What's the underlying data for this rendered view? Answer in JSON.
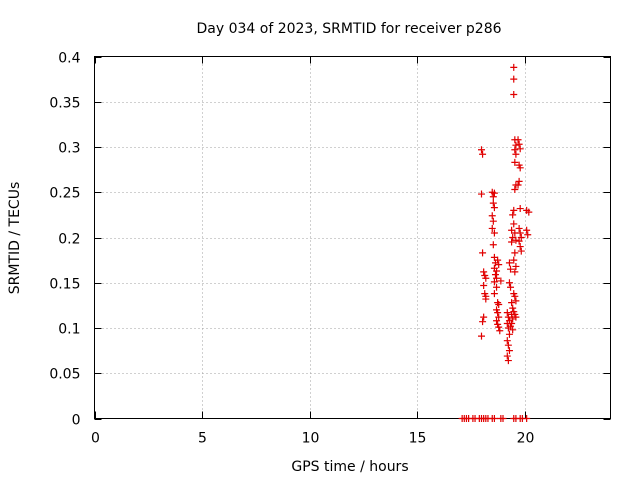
{
  "chart_data": {
    "type": "scatter",
    "title": "Day 034 of 2023, SRMTID for receiver p286",
    "xlabel": "GPS time / hours",
    "ylabel": "SRMTID / TECUs",
    "xlim": [
      0,
      24
    ],
    "ylim": [
      0,
      0.4
    ],
    "xticks": [
      0,
      5,
      10,
      15,
      20
    ],
    "xtick_labels": [
      "0",
      "5",
      "10",
      "15",
      "20"
    ],
    "yticks": [
      0,
      0.05,
      0.1,
      0.15,
      0.2,
      0.25,
      0.3,
      0.35,
      0.4
    ],
    "ytick_labels": [
      "0",
      "0.05",
      "0.1",
      "0.15",
      "0.2",
      "0.25",
      "0.3",
      "0.35",
      "0.4"
    ],
    "grid": true,
    "marker": "+",
    "series_color": "#e00000",
    "series": [
      {
        "name": "SRMTID",
        "points": [
          [
            17.1,
            0
          ],
          [
            17.2,
            0
          ],
          [
            17.3,
            0
          ],
          [
            17.4,
            0
          ],
          [
            17.6,
            0
          ],
          [
            17.7,
            0
          ],
          [
            17.9,
            0
          ],
          [
            18.0,
            0
          ],
          [
            18.1,
            0
          ],
          [
            18.2,
            0
          ],
          [
            18.3,
            0
          ],
          [
            18.5,
            0
          ],
          [
            18.6,
            0
          ],
          [
            18.9,
            0
          ],
          [
            19.0,
            0
          ],
          [
            19.5,
            0
          ],
          [
            19.6,
            0
          ],
          [
            19.8,
            0
          ],
          [
            19.9,
            0
          ],
          [
            20.1,
            0
          ],
          [
            18.0,
            0.297
          ],
          [
            18.05,
            0.292
          ],
          [
            18.0,
            0.248
          ],
          [
            18.05,
            0.183
          ],
          [
            18.1,
            0.162
          ],
          [
            18.15,
            0.158
          ],
          [
            18.2,
            0.155
          ],
          [
            18.1,
            0.147
          ],
          [
            18.15,
            0.138
          ],
          [
            18.2,
            0.132
          ],
          [
            18.1,
            0.112
          ],
          [
            18.05,
            0.107
          ],
          [
            18.0,
            0.091
          ],
          [
            18.2,
            0.135
          ],
          [
            18.5,
            0.25
          ],
          [
            18.55,
            0.245
          ],
          [
            18.6,
            0.249
          ],
          [
            18.55,
            0.238
          ],
          [
            18.6,
            0.233
          ],
          [
            18.5,
            0.224
          ],
          [
            18.55,
            0.218
          ],
          [
            18.5,
            0.21
          ],
          [
            18.6,
            0.205
          ],
          [
            18.55,
            0.192
          ],
          [
            18.6,
            0.178
          ],
          [
            18.65,
            0.172
          ],
          [
            18.6,
            0.166
          ],
          [
            18.7,
            0.163
          ],
          [
            18.65,
            0.159
          ],
          [
            18.7,
            0.155
          ],
          [
            18.6,
            0.151
          ],
          [
            18.75,
            0.175
          ],
          [
            18.8,
            0.17
          ],
          [
            18.7,
            0.145
          ],
          [
            18.6,
            0.138
          ],
          [
            18.75,
            0.128
          ],
          [
            18.8,
            0.126
          ],
          [
            18.7,
            0.12
          ],
          [
            18.75,
            0.117
          ],
          [
            18.8,
            0.112
          ],
          [
            18.7,
            0.108
          ],
          [
            18.75,
            0.104
          ],
          [
            18.8,
            0.101
          ],
          [
            18.85,
            0.097
          ],
          [
            18.9,
            0.152
          ],
          [
            19.2,
            0.117
          ],
          [
            19.25,
            0.112
          ],
          [
            19.3,
            0.108
          ],
          [
            19.2,
            0.105
          ],
          [
            19.25,
            0.1
          ],
          [
            19.3,
            0.093
          ],
          [
            19.2,
            0.086
          ],
          [
            19.25,
            0.081
          ],
          [
            19.3,
            0.075
          ],
          [
            19.2,
            0.069
          ],
          [
            19.25,
            0.064
          ],
          [
            19.3,
            0.172
          ],
          [
            19.35,
            0.165
          ],
          [
            19.3,
            0.15
          ],
          [
            19.35,
            0.145
          ],
          [
            19.4,
            0.128
          ],
          [
            19.45,
            0.122
          ],
          [
            19.4,
            0.115
          ],
          [
            19.45,
            0.11
          ],
          [
            19.4,
            0.105
          ],
          [
            19.35,
            0.102
          ],
          [
            19.45,
            0.098
          ],
          [
            19.4,
            0.208
          ],
          [
            19.45,
            0.2
          ],
          [
            19.4,
            0.195
          ],
          [
            19.5,
            0.23
          ],
          [
            19.45,
            0.225
          ],
          [
            19.5,
            0.388
          ],
          [
            19.5,
            0.375
          ],
          [
            19.5,
            0.358
          ],
          [
            19.55,
            0.308
          ],
          [
            19.6,
            0.302
          ],
          [
            19.55,
            0.297
          ],
          [
            19.6,
            0.292
          ],
          [
            19.55,
            0.283
          ],
          [
            19.6,
            0.258
          ],
          [
            19.55,
            0.253
          ],
          [
            19.5,
            0.215
          ],
          [
            19.55,
            0.205
          ],
          [
            19.6,
            0.197
          ],
          [
            19.55,
            0.183
          ],
          [
            19.5,
            0.175
          ],
          [
            19.6,
            0.168
          ],
          [
            19.55,
            0.162
          ],
          [
            19.5,
            0.138
          ],
          [
            19.55,
            0.135
          ],
          [
            19.6,
            0.13
          ],
          [
            19.5,
            0.118
          ],
          [
            19.55,
            0.115
          ],
          [
            19.6,
            0.112
          ],
          [
            19.7,
            0.308
          ],
          [
            19.75,
            0.303
          ],
          [
            19.8,
            0.298
          ],
          [
            19.75,
            0.28
          ],
          [
            19.8,
            0.277
          ],
          [
            19.75,
            0.262
          ],
          [
            19.7,
            0.258
          ],
          [
            19.8,
            0.232
          ],
          [
            19.75,
            0.21
          ],
          [
            19.8,
            0.205
          ],
          [
            19.85,
            0.2
          ],
          [
            19.75,
            0.196
          ],
          [
            19.8,
            0.19
          ],
          [
            19.85,
            0.185
          ],
          [
            20.1,
            0.23
          ],
          [
            20.2,
            0.228
          ],
          [
            20.1,
            0.208
          ],
          [
            20.15,
            0.203
          ]
        ]
      }
    ]
  }
}
